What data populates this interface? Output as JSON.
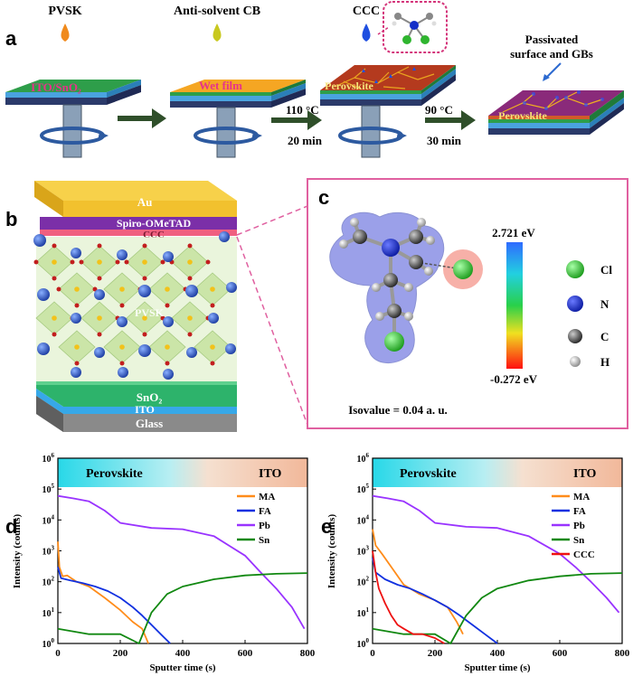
{
  "panel_a": {
    "letter": "a",
    "drop_labels": [
      "PVSK",
      "Anti-solvent CB",
      "CCC"
    ],
    "film_labels": [
      "ITO/SnO₂",
      "Wet film",
      "Perovskite",
      "Perovskite"
    ],
    "step1_temp": "110 °C",
    "step1_time": "20 min",
    "step2_temp": "90 °C",
    "step2_time": "30 min",
    "passivated_line1": "Passivated",
    "passivated_line2": "surface and GBs",
    "colors": {
      "pvsk_drop": "#f08a1c",
      "cb_drop": "#c8c81e",
      "ccc_drop": "#1f4fe0",
      "wet_film": "#f5a623",
      "perovskite": "#b43a1e",
      "substrate_green": "#2e9e4a",
      "substrate_blue": "#4aa3df"
    }
  },
  "panel_b": {
    "letter": "b",
    "layers": [
      "Au",
      "Spiro-OMeTAD",
      "CCC",
      "PVSK",
      "SnO₂",
      "ITO",
      "Glass"
    ],
    "colors": {
      "au": "#f2c12e",
      "spiro": "#7b2fa8",
      "ccc": "#f06080",
      "pvsk": "#cfe6b0",
      "sno2": "#2db36b",
      "ito": "#37a8e8",
      "glass": "#8a8a8a"
    }
  },
  "panel_c": {
    "letter": "c",
    "scale_max": "2.721 eV",
    "scale_min": "-0.272 eV",
    "isovalue": "Isovalue = 0.04 a. u.",
    "legend": [
      {
        "atom": "Cl",
        "color": "#2fb52f"
      },
      {
        "atom": "N",
        "color": "#1530c8"
      },
      {
        "atom": "C",
        "color": "#444444"
      },
      {
        "atom": "H",
        "color": "#dddddd"
      }
    ]
  },
  "panel_d": {
    "letter": "d",
    "region_left": "Perovskite",
    "region_right": "ITO",
    "ylabel": "Intensity (counts)",
    "xlabel": "Sputter time (s)",
    "legend": [
      {
        "name": "MA",
        "color": "#ff8c1a"
      },
      {
        "name": "FA",
        "color": "#1030e0"
      },
      {
        "name": "Pb",
        "color": "#9933ff"
      },
      {
        "name": "Sn",
        "color": "#118811"
      }
    ]
  },
  "panel_e": {
    "letter": "e",
    "region_left": "Perovskite",
    "region_right": "ITO",
    "ylabel": "Intensity (counts)",
    "xlabel": "Sputter time (s)",
    "legend": [
      {
        "name": "MA",
        "color": "#ff8c1a"
      },
      {
        "name": "FA",
        "color": "#1030e0"
      },
      {
        "name": "Pb",
        "color": "#9933ff"
      },
      {
        "name": "Sn",
        "color": "#118811"
      },
      {
        "name": "CCC",
        "color": "#ee1111"
      }
    ]
  },
  "chart_data": [
    {
      "type": "line",
      "panel": "d",
      "xlabel": "Sputter time (s)",
      "ylabel": "Intensity (counts)",
      "xlim": [
        0,
        800
      ],
      "ylim": [
        1,
        1000000
      ],
      "yscale": "log",
      "xticks": [
        0,
        200,
        400,
        600,
        800
      ],
      "yticks": [
        "10^0",
        "10^1",
        "10^2",
        "10^3",
        "10^4",
        "10^5",
        "10^6"
      ],
      "series": [
        {
          "name": "MA",
          "x": [
            0,
            5,
            15,
            30,
            60,
            100,
            150,
            200,
            240,
            270,
            290
          ],
          "y": [
            2000,
            300,
            150,
            160,
            100,
            70,
            30,
            12,
            5,
            3,
            1
          ]
        },
        {
          "name": "FA",
          "x": [
            0,
            10,
            40,
            80,
            120,
            160,
            200,
            240,
            270,
            300,
            330,
            360
          ],
          "y": [
            300,
            130,
            110,
            90,
            70,
            50,
            30,
            15,
            8,
            4,
            2,
            1
          ]
        },
        {
          "name": "Pb",
          "x": [
            0,
            50,
            100,
            150,
            200,
            300,
            400,
            500,
            600,
            650,
            700,
            750,
            790
          ],
          "y": [
            60000,
            50000,
            40000,
            20000,
            8000,
            5500,
            5000,
            3000,
            700,
            200,
            60,
            15,
            3
          ]
        },
        {
          "name": "Sn",
          "x": [
            0,
            100,
            200,
            260,
            300,
            350,
            400,
            500,
            600,
            700,
            800
          ],
          "y": [
            3,
            2,
            2,
            1,
            10,
            40,
            70,
            120,
            160,
            180,
            190
          ]
        }
      ]
    },
    {
      "type": "line",
      "panel": "e",
      "xlabel": "Sputter time (s)",
      "ylabel": "Intensity (counts)",
      "xlim": [
        0,
        800
      ],
      "ylim": [
        1,
        1000000
      ],
      "yscale": "log",
      "xticks": [
        0,
        200,
        400,
        600,
        800
      ],
      "yticks": [
        "10^0",
        "10^1",
        "10^2",
        "10^3",
        "10^4",
        "10^5",
        "10^6"
      ],
      "series": [
        {
          "name": "MA",
          "x": [
            0,
            10,
            30,
            60,
            100,
            150,
            200,
            240,
            270,
            290
          ],
          "y": [
            5000,
            1500,
            800,
            300,
            80,
            40,
            25,
            15,
            5,
            2
          ]
        },
        {
          "name": "FA",
          "x": [
            0,
            10,
            40,
            80,
            120,
            160,
            200,
            240,
            280,
            320,
            360,
            400
          ],
          "y": [
            600,
            200,
            120,
            80,
            60,
            40,
            25,
            15,
            8,
            4,
            2,
            1
          ]
        },
        {
          "name": "Pb",
          "x": [
            0,
            50,
            100,
            150,
            200,
            300,
            400,
            500,
            600,
            650,
            700,
            750,
            790
          ],
          "y": [
            60000,
            50000,
            40000,
            20000,
            8000,
            6000,
            5500,
            3000,
            800,
            300,
            100,
            30,
            10
          ]
        },
        {
          "name": "Sn",
          "x": [
            0,
            100,
            200,
            250,
            300,
            350,
            400,
            500,
            600,
            700,
            800
          ],
          "y": [
            3,
            2,
            2,
            1,
            8,
            30,
            60,
            110,
            150,
            180,
            190
          ]
        },
        {
          "name": "CCC",
          "x": [
            0,
            10,
            20,
            40,
            60,
            80,
            100,
            130,
            160,
            200,
            230
          ],
          "y": [
            1000,
            200,
            60,
            20,
            8,
            4,
            3,
            2,
            2,
            1.5,
            1
          ]
        }
      ]
    }
  ]
}
